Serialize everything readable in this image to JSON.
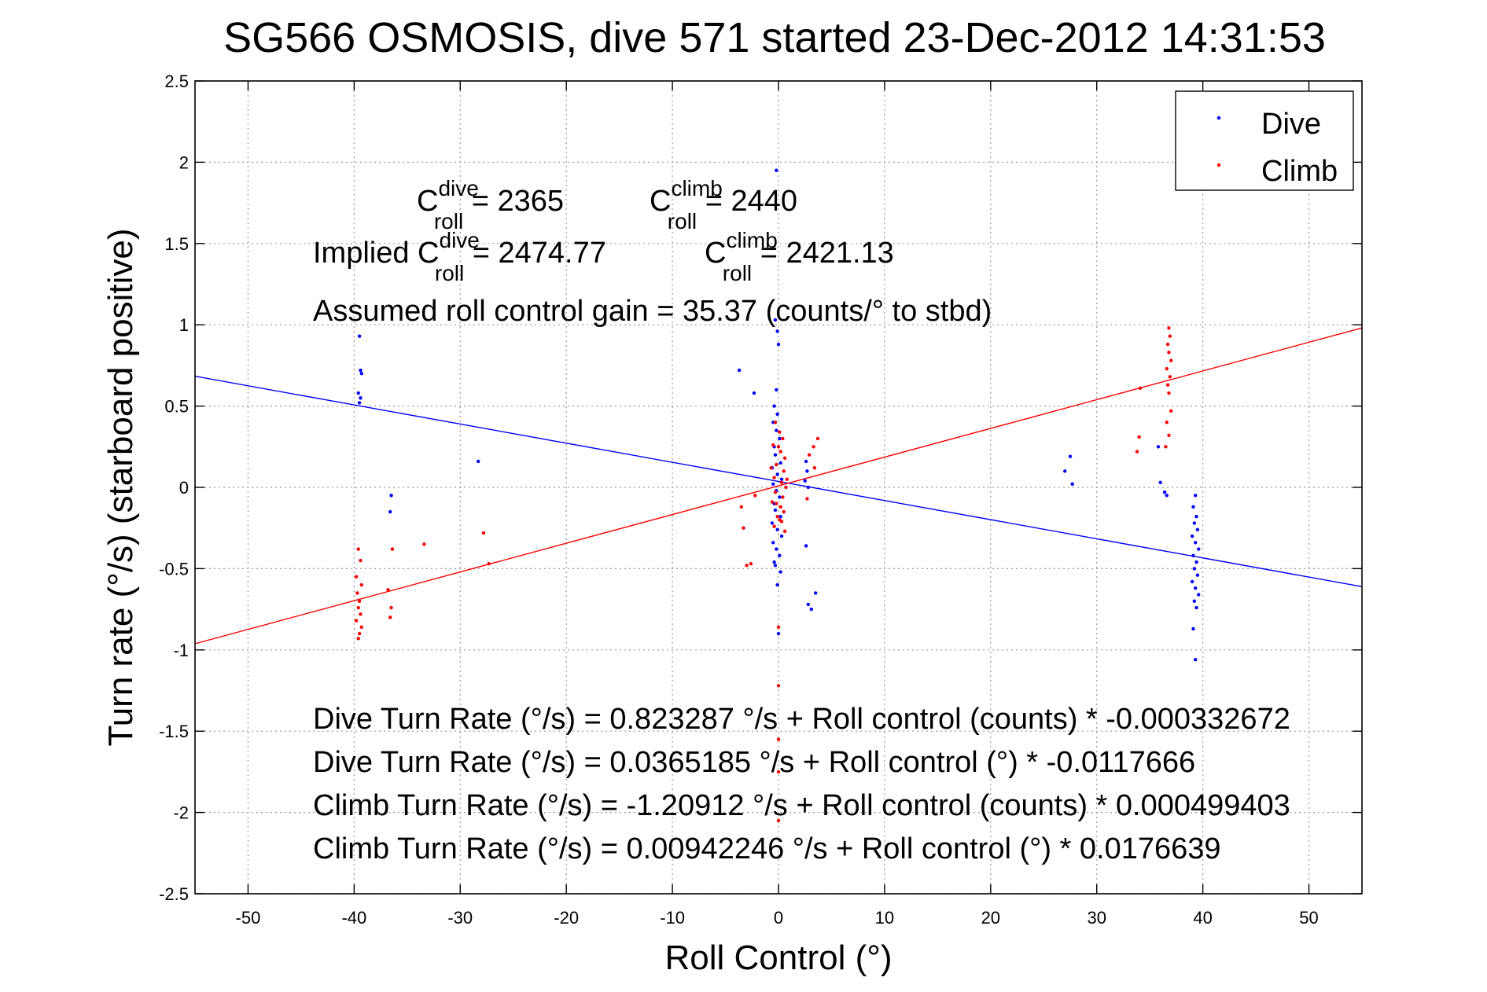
{
  "chart_data": {
    "type": "scatter",
    "title": "SG566 OSMOSIS, dive 571 started 23-Dec-2012 14:31:53",
    "xlabel": "Roll Control (°)",
    "ylabel": "Turn rate (°/s)  (starboard positive)",
    "xlim": [
      -55,
      55
    ],
    "ylim": [
      -2.5,
      2.5
    ],
    "x_ticks": [
      -50,
      -40,
      -30,
      -20,
      -10,
      0,
      10,
      20,
      30,
      40,
      50
    ],
    "y_ticks": [
      2.5,
      2,
      1.5,
      1,
      0.5,
      0,
      -0.5,
      -1,
      -1.5,
      -2,
      -2.5
    ],
    "x_tick_labels": [
      "-50",
      "-40",
      "-30",
      "-20",
      "-10",
      "0",
      "10",
      "20",
      "30",
      "40",
      "50"
    ],
    "y_tick_labels": [
      "2.5",
      "2",
      "1.5",
      "1",
      "0.5",
      "0",
      "-0.5",
      "-1",
      "-1.5",
      "-2",
      "-2.5"
    ],
    "grid": true,
    "legend_position": "top-right",
    "series": [
      {
        "name": "Dive",
        "color": "#0000ff",
        "marker": "dot",
        "points": [
          [
            -39.5,
            0.93
          ],
          [
            -39.4,
            0.72
          ],
          [
            -39.3,
            0.7
          ],
          [
            -39.6,
            0.58
          ],
          [
            -39.4,
            0.55
          ],
          [
            -39.5,
            0.52
          ],
          [
            -36.5,
            -0.05
          ],
          [
            -36.6,
            -0.15
          ],
          [
            -28.3,
            0.16
          ],
          [
            -3.7,
            0.72
          ],
          [
            -2.3,
            0.58
          ],
          [
            -0.2,
            1.95
          ],
          [
            -0.3,
            1.03
          ],
          [
            -0.1,
            0.96
          ],
          [
            0.0,
            0.88
          ],
          [
            -0.2,
            0.6
          ],
          [
            -0.4,
            0.5
          ],
          [
            -0.1,
            0.45
          ],
          [
            -0.5,
            0.4
          ],
          [
            -0.2,
            0.35
          ],
          [
            0.1,
            0.3
          ],
          [
            -0.4,
            0.25
          ],
          [
            -0.3,
            0.2
          ],
          [
            0.2,
            0.15
          ],
          [
            -0.6,
            0.12
          ],
          [
            -0.1,
            0.08
          ],
          [
            0.3,
            0.05
          ],
          [
            -0.5,
            0.02
          ],
          [
            -0.2,
            -0.02
          ],
          [
            0.1,
            -0.06
          ],
          [
            -0.4,
            -0.1
          ],
          [
            -0.3,
            -0.14
          ],
          [
            0.2,
            -0.18
          ],
          [
            -0.6,
            -0.22
          ],
          [
            -0.1,
            -0.26
          ],
          [
            0.3,
            -0.3
          ],
          [
            -0.5,
            -0.34
          ],
          [
            -0.2,
            -0.38
          ],
          [
            0.1,
            -0.42
          ],
          [
            -0.4,
            -0.46
          ],
          [
            -0.3,
            -0.48
          ],
          [
            0.2,
            -0.52
          ],
          [
            -0.1,
            -0.6
          ],
          [
            0.0,
            -0.9
          ],
          [
            2.6,
            0.16
          ],
          [
            2.7,
            0.1
          ],
          [
            2.5,
            0.04
          ],
          [
            2.8,
            0.0
          ],
          [
            2.6,
            -0.36
          ],
          [
            2.8,
            -0.72
          ],
          [
            3.1,
            -0.75
          ],
          [
            3.5,
            -0.65
          ],
          [
            27.0,
            0.1
          ],
          [
            27.5,
            0.19
          ],
          [
            27.7,
            0.02
          ],
          [
            35.8,
            0.25
          ],
          [
            36.0,
            0.03
          ],
          [
            36.4,
            -0.03
          ],
          [
            36.6,
            -0.05
          ],
          [
            39.3,
            -0.05
          ],
          [
            39.1,
            -0.12
          ],
          [
            39.4,
            -0.18
          ],
          [
            39.2,
            -0.22
          ],
          [
            39.5,
            -0.26
          ],
          [
            39.0,
            -0.3
          ],
          [
            39.3,
            -0.34
          ],
          [
            39.6,
            -0.38
          ],
          [
            39.1,
            -0.42
          ],
          [
            39.4,
            -0.46
          ],
          [
            39.2,
            -0.5
          ],
          [
            39.5,
            -0.54
          ],
          [
            39.0,
            -0.58
          ],
          [
            39.3,
            -0.62
          ],
          [
            39.6,
            -0.66
          ],
          [
            39.2,
            -0.7
          ],
          [
            39.4,
            -0.74
          ],
          [
            39.1,
            -0.87
          ],
          [
            39.3,
            -1.06
          ]
        ]
      },
      {
        "name": "Climb",
        "color": "#ff0000",
        "marker": "dot",
        "points": [
          [
            -39.6,
            -0.38
          ],
          [
            -39.4,
            -0.45
          ],
          [
            -39.8,
            -0.55
          ],
          [
            -39.3,
            -0.6
          ],
          [
            -39.7,
            -0.65
          ],
          [
            -39.5,
            -0.7
          ],
          [
            -39.6,
            -0.74
          ],
          [
            -39.4,
            -0.78
          ],
          [
            -39.8,
            -0.82
          ],
          [
            -39.3,
            -0.86
          ],
          [
            -39.5,
            -0.9
          ],
          [
            -39.6,
            -0.93
          ],
          [
            -36.8,
            -0.63
          ],
          [
            -36.5,
            -0.74
          ],
          [
            -36.6,
            -0.8
          ],
          [
            -36.4,
            -0.38
          ],
          [
            -33.4,
            -0.35
          ],
          [
            -27.8,
            -0.28
          ],
          [
            -27.3,
            -0.47
          ],
          [
            -3.3,
            -0.25
          ],
          [
            -3.5,
            -0.12
          ],
          [
            -2.2,
            -0.05
          ],
          [
            -3.0,
            -0.48
          ],
          [
            -2.6,
            -0.47
          ],
          [
            -0.3,
            0.4
          ],
          [
            0.1,
            0.34
          ],
          [
            0.4,
            0.3
          ],
          [
            -0.5,
            0.26
          ],
          [
            0.2,
            0.22
          ],
          [
            0.6,
            0.18
          ],
          [
            -0.2,
            0.14
          ],
          [
            0.5,
            0.1
          ],
          [
            -0.4,
            0.06
          ],
          [
            0.3,
            0.03
          ],
          [
            0.7,
            0.0
          ],
          [
            -0.3,
            -0.03
          ],
          [
            0.4,
            -0.06
          ],
          [
            -0.6,
            -0.09
          ],
          [
            0.2,
            -0.12
          ],
          [
            0.5,
            -0.15
          ],
          [
            -0.1,
            -0.18
          ],
          [
            0.3,
            -0.21
          ],
          [
            -0.4,
            -0.24
          ],
          [
            0.6,
            -0.27
          ],
          [
            0.1,
            -0.2
          ],
          [
            -0.2,
            -0.1
          ],
          [
            0.8,
            0.05
          ],
          [
            -0.7,
            0.12
          ],
          [
            0.0,
            0.25
          ],
          [
            0.0,
            -0.86
          ],
          [
            0.0,
            -1.22
          ],
          [
            0.0,
            -1.55
          ],
          [
            0.0,
            -1.75
          ],
          [
            0.0,
            -2.05
          ],
          [
            2.9,
            0.2
          ],
          [
            3.3,
            0.25
          ],
          [
            3.7,
            0.3
          ],
          [
            3.4,
            0.12
          ],
          [
            2.7,
            -0.07
          ],
          [
            33.8,
            0.22
          ],
          [
            34.0,
            0.31
          ],
          [
            34.1,
            0.61
          ],
          [
            36.8,
            0.98
          ],
          [
            36.9,
            0.93
          ],
          [
            36.7,
            0.88
          ],
          [
            36.8,
            0.83
          ],
          [
            37.0,
            0.78
          ],
          [
            36.6,
            0.73
          ],
          [
            36.9,
            0.68
          ],
          [
            36.7,
            0.63
          ],
          [
            36.8,
            0.58
          ],
          [
            37.0,
            0.47
          ],
          [
            36.6,
            0.4
          ],
          [
            36.8,
            0.32
          ],
          [
            36.5,
            0.25
          ]
        ]
      }
    ],
    "lines": [
      {
        "name": "Dive fit",
        "color": "#0000ff",
        "slope": -0.0117666,
        "intercept": 0.0365185
      },
      {
        "name": "Climb fit",
        "color": "#ff0000",
        "slope": 0.0176639,
        "intercept": 0.00942246
      }
    ]
  },
  "annotations": {
    "c_dive_main": "C",
    "c_dive_sup": "dive",
    "c_dive_sub": "roll",
    "c_dive_val": " = 2365",
    "c_climb_main": "C",
    "c_climb_sup": "climb",
    "c_climb_sub": "roll",
    "c_climb_val": " = 2440",
    "implied_prefix": "Implied C",
    "implied_dive_sup": "dive",
    "implied_dive_sub": "roll",
    "implied_dive_val": " = 2474.77",
    "implied_climb_main": "C",
    "implied_climb_sup": "climb",
    "implied_climb_sub": "roll",
    "implied_climb_val": " = 2421.13",
    "gain": "Assumed roll control gain = 35.37 (counts/° to stbd)",
    "eq1": "Dive Turn Rate (°/s) = 0.823287 °/s + Roll control (counts) * -0.000332672",
    "eq2": "Dive Turn Rate (°/s) = 0.0365185 °/s + Roll control (°) * -0.0117666",
    "eq3": "Climb Turn Rate (°/s) = -1.20912 °/s + Roll control (counts) * 0.000499403",
    "eq4": "Climb Turn Rate (°/s) = 0.00942246 °/s + Roll control (°) * 0.0176639"
  }
}
